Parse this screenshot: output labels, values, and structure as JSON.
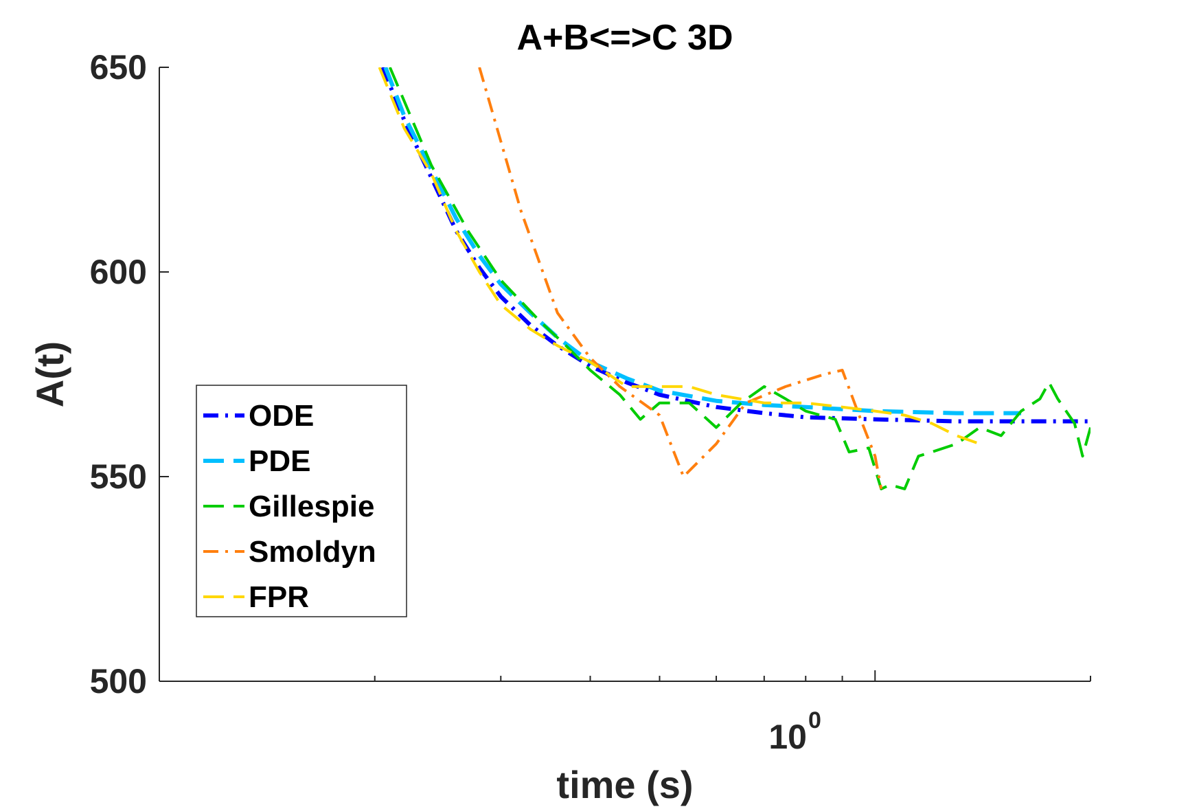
{
  "chart_data": {
    "type": "line",
    "title": "A+B<=>C 3D",
    "xlabel": "time (s)",
    "ylabel": "A(t)",
    "xscale": "log",
    "xlim": [
      0.1,
      2.0
    ],
    "ylim": [
      500,
      650
    ],
    "y_ticks": [
      {
        "value": 500,
        "label": "500"
      },
      {
        "value": 550,
        "label": "550"
      },
      {
        "value": 600,
        "label": "600"
      },
      {
        "value": 650,
        "label": "650"
      }
    ],
    "x_tick_major": {
      "value": 1.0,
      "base": "10",
      "exponent": "0"
    },
    "x_minor_ticks": [
      0.2,
      0.3,
      0.4,
      0.5,
      0.6,
      0.7,
      0.8,
      0.9,
      2.0
    ],
    "grid": false,
    "legend_position": "middle-left",
    "series": [
      {
        "name": "ODE",
        "color": "#0000ff",
        "dash": "dash-dot",
        "points": [
          [
            0.205,
            650
          ],
          [
            0.22,
            637
          ],
          [
            0.24,
            623
          ],
          [
            0.26,
            610
          ],
          [
            0.28,
            601
          ],
          [
            0.3,
            594
          ],
          [
            0.33,
            587
          ],
          [
            0.36,
            582
          ],
          [
            0.4,
            577
          ],
          [
            0.45,
            573
          ],
          [
            0.5,
            570
          ],
          [
            0.6,
            567
          ],
          [
            0.7,
            565.5
          ],
          [
            0.8,
            564.5
          ],
          [
            1.0,
            564
          ],
          [
            1.3,
            563.5
          ],
          [
            2.0,
            563.5
          ]
        ]
      },
      {
        "name": "PDE",
        "color": "#00bfff",
        "dash": "dashed",
        "points": [
          [
            0.207,
            650
          ],
          [
            0.22,
            638
          ],
          [
            0.24,
            625
          ],
          [
            0.26,
            613
          ],
          [
            0.28,
            604
          ],
          [
            0.3,
            597
          ],
          [
            0.33,
            590
          ],
          [
            0.36,
            584
          ],
          [
            0.4,
            578
          ],
          [
            0.45,
            574
          ],
          [
            0.5,
            571
          ],
          [
            0.6,
            568.5
          ],
          [
            0.7,
            567.5
          ],
          [
            0.8,
            567
          ],
          [
            1.0,
            566
          ],
          [
            1.3,
            565.5
          ],
          [
            1.6,
            565.5
          ]
        ]
      },
      {
        "name": "Gillespie",
        "color": "#00cc00",
        "dash": "dashed",
        "points": [
          [
            0.21,
            650
          ],
          [
            0.24,
            626
          ],
          [
            0.27,
            610
          ],
          [
            0.3,
            598
          ],
          [
            0.34,
            588
          ],
          [
            0.37,
            582
          ],
          [
            0.4,
            576
          ],
          [
            0.44,
            570
          ],
          [
            0.47,
            564
          ],
          [
            0.5,
            568
          ],
          [
            0.55,
            568
          ],
          [
            0.6,
            562
          ],
          [
            0.65,
            568
          ],
          [
            0.7,
            572
          ],
          [
            0.75,
            569
          ],
          [
            0.8,
            566
          ],
          [
            0.88,
            564
          ],
          [
            0.92,
            556
          ],
          [
            0.98,
            557
          ],
          [
            1.02,
            547
          ],
          [
            1.05,
            548
          ],
          [
            1.1,
            547
          ],
          [
            1.15,
            555
          ],
          [
            1.2,
            556
          ],
          [
            1.3,
            558
          ],
          [
            1.4,
            562
          ],
          [
            1.5,
            560
          ],
          [
            1.6,
            566
          ],
          [
            1.7,
            569
          ],
          [
            1.75,
            573
          ],
          [
            1.8,
            569
          ],
          [
            1.9,
            563
          ],
          [
            1.95,
            555
          ],
          [
            2.0,
            562
          ]
        ]
      },
      {
        "name": "Smoldyn",
        "color": "#ff7f0e",
        "dash": "dash-dot",
        "points": [
          [
            0.28,
            650
          ],
          [
            0.32,
            615
          ],
          [
            0.36,
            590
          ],
          [
            0.4,
            579
          ],
          [
            0.44,
            572
          ],
          [
            0.5,
            565
          ],
          [
            0.54,
            550
          ],
          [
            0.6,
            558
          ],
          [
            0.66,
            568
          ],
          [
            0.75,
            572
          ],
          [
            0.85,
            575
          ],
          [
            0.9,
            576
          ],
          [
            0.95,
            565
          ],
          [
            1.0,
            555
          ],
          [
            1.02,
            547
          ]
        ]
      },
      {
        "name": "FPR",
        "color": "#ffd700",
        "dash": "dashed",
        "points": [
          [
            0.203,
            650
          ],
          [
            0.22,
            635
          ],
          [
            0.24,
            624
          ],
          [
            0.26,
            610
          ],
          [
            0.28,
            600
          ],
          [
            0.3,
            592
          ],
          [
            0.33,
            586
          ],
          [
            0.36,
            582
          ],
          [
            0.4,
            578
          ],
          [
            0.45,
            572
          ],
          [
            0.5,
            572
          ],
          [
            0.55,
            572
          ],
          [
            0.6,
            570
          ],
          [
            0.7,
            568
          ],
          [
            0.8,
            568
          ],
          [
            0.9,
            567
          ],
          [
            1.0,
            566
          ],
          [
            1.1,
            565
          ],
          [
            1.2,
            563
          ],
          [
            1.3,
            560
          ],
          [
            1.4,
            558
          ]
        ]
      }
    ]
  }
}
